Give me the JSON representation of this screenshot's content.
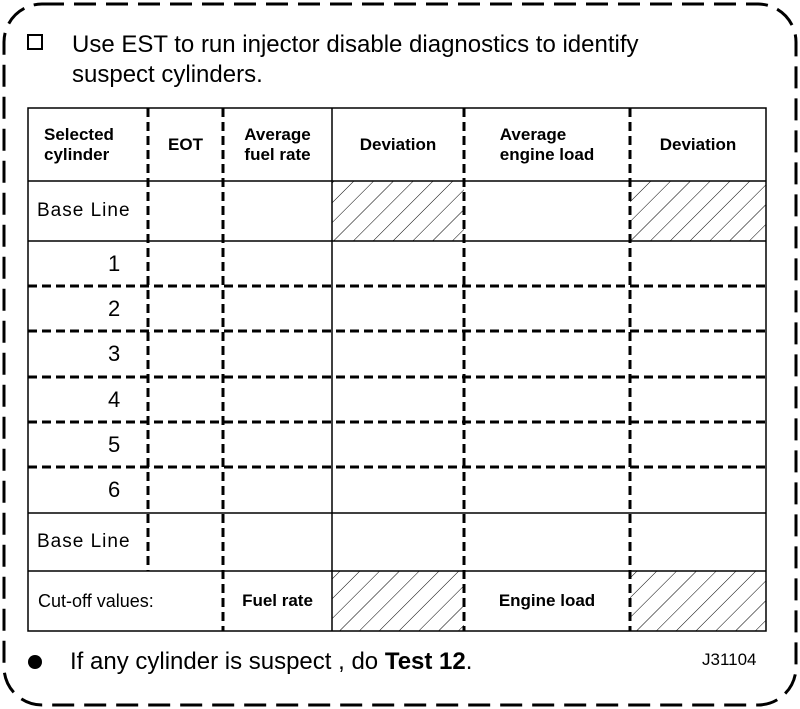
{
  "instruction": {
    "line1": "Use EST to run injector disable diagnostics to identify",
    "line2": "suspect cylinders."
  },
  "table": {
    "headers": {
      "selected_cylinder_1": "Selected",
      "selected_cylinder_2": "cylinder",
      "eot": "EOT",
      "avg_fuel_rate_1": "Average",
      "avg_fuel_rate_2": "fuel rate",
      "deviation_1": "Deviation",
      "avg_engine_load_1": "Average",
      "avg_engine_load_2": "engine load",
      "deviation_2": "Deviation"
    },
    "rows": {
      "base_line_top": "Base Line",
      "cyl1": "1",
      "cyl2": "2",
      "cyl3": "3",
      "cyl4": "4",
      "cyl5": "5",
      "cyl6": "6",
      "base_line_bottom": "Base Line"
    },
    "cutoff": {
      "label": "Cut-off values:",
      "fuel_rate": "Fuel rate",
      "engine_load": "Engine load"
    }
  },
  "note": {
    "prefix": "If any cylinder is suspect , do ",
    "test": "Test 12",
    "suffix": "."
  },
  "ref_code": "J31104"
}
